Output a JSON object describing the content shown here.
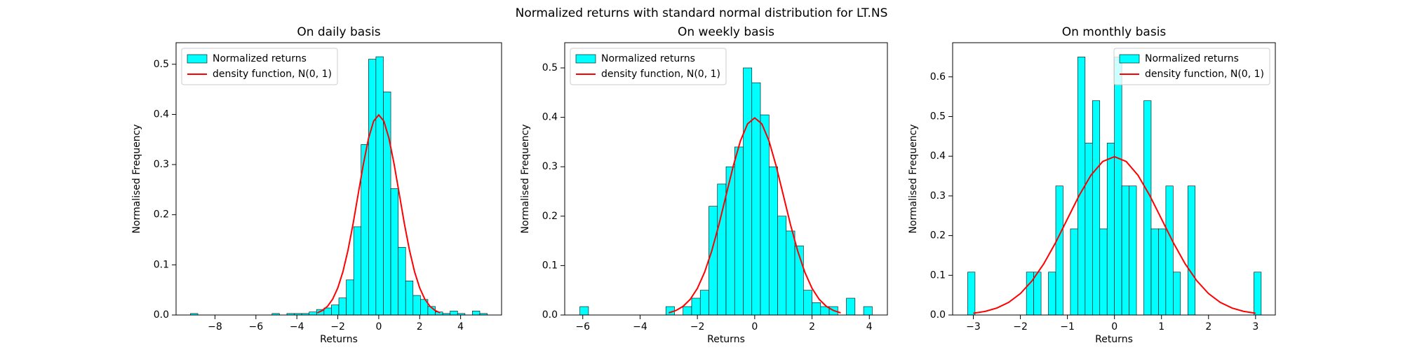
{
  "title": "Normalized returns with standard normal distribution for LT.NS",
  "chart_data": [
    {
      "type": "histogram",
      "title": "On daily basis",
      "x_label": "Returns",
      "y_label": "Normalised Frequency",
      "legend": "upper left",
      "xlim": [
        -9.9,
        6.0
      ],
      "ylim": [
        0,
        0.543
      ],
      "xticks": [
        {
          "value": -8,
          "label": "−8"
        },
        {
          "value": -6,
          "label": "−6"
        },
        {
          "value": -4,
          "label": "−4"
        },
        {
          "value": -2,
          "label": "−2"
        },
        0,
        2,
        4
      ],
      "yticks": [
        {
          "value": 0,
          "label": "0.0"
        },
        0.1,
        0.2,
        0.3,
        0.4,
        0.5
      ],
      "series": [
        {
          "name": "Normalized returns",
          "color": "#00ffff",
          "bins": [
            -9.2,
            -8.8375,
            -8.475,
            -8.1125,
            -7.75,
            -7.3875,
            -7.025,
            -6.6625,
            -6.3,
            -5.9375,
            -5.575,
            -5.2125,
            -4.85,
            -4.4875,
            -4.125,
            -3.7625,
            -3.4,
            -3.0375,
            -2.675,
            -2.3125,
            -1.95,
            -1.5875,
            -1.225,
            -0.8625,
            -0.5,
            -0.1375,
            0.225,
            0.5875,
            0.95,
            1.3125,
            1.675,
            2.0375,
            2.4,
            2.7625,
            3.125,
            3.4875,
            3.85,
            4.2125,
            4.575,
            4.9375,
            5.3
          ],
          "values": [
            0.003,
            0,
            0,
            0,
            0,
            0,
            0,
            0,
            0,
            0,
            0,
            0.003,
            0,
            0.003,
            0.003,
            0.003,
            0.006,
            0.011,
            0.014,
            0.02,
            0.034,
            0.07,
            0.176,
            0.34,
            0.51,
            0.515,
            0.445,
            0.252,
            0.135,
            0.068,
            0.039,
            0.031,
            0.017,
            0.006,
            0.003,
            0.008,
            0.003,
            0,
            0.008,
            0.003
          ]
        },
        {
          "type": "line",
          "name": "density function, N(0, 1)",
          "color": "#ff0000",
          "x": [
            -3,
            -2.75,
            -2.5,
            -2.25,
            -2,
            -1.75,
            -1.5,
            -1.25,
            -1,
            -0.75,
            -0.5,
            -0.25,
            0,
            0.25,
            0.5,
            0.75,
            1,
            1.25,
            1.5,
            1.75,
            2,
            2.25,
            2.5,
            2.75,
            3
          ],
          "values": [
            0.0044,
            0.0091,
            0.0175,
            0.0317,
            0.054,
            0.0863,
            0.1295,
            0.1826,
            0.242,
            0.3011,
            0.3521,
            0.3867,
            0.3989,
            0.3867,
            0.3521,
            0.3011,
            0.242,
            0.1826,
            0.1295,
            0.0863,
            0.054,
            0.0317,
            0.0175,
            0.0091,
            0.0044
          ]
        }
      ]
    },
    {
      "type": "histogram",
      "title": "On weekly basis",
      "x_label": "Returns",
      "y_label": "Normalised Frequency",
      "legend": "upper left",
      "xlim": [
        -6.63,
        4.63
      ],
      "ylim": [
        0,
        0.551
      ],
      "xticks": [
        {
          "value": -6,
          "label": "−6"
        },
        {
          "value": -4,
          "label": "−4"
        },
        {
          "value": -2,
          "label": "−2"
        },
        0,
        2,
        4
      ],
      "yticks": [
        {
          "value": 0,
          "label": "0.0"
        },
        0.1,
        0.2,
        0.3,
        0.4,
        0.5
      ],
      "series": [
        {
          "name": "Normalized returns",
          "color": "#00ffff",
          "bins": [
            -6.1,
            -5.8,
            -5.5,
            -5.2,
            -4.9,
            -4.6,
            -4.3,
            -4.0,
            -3.7,
            -3.4,
            -3.1,
            -2.8,
            -2.5,
            -2.2,
            -1.9,
            -1.6,
            -1.3,
            -1.0,
            -0.7,
            -0.4,
            -0.1,
            0.2,
            0.5,
            0.8,
            1.1,
            1.4,
            1.7,
            2.0,
            2.3,
            2.6,
            2.9,
            3.2,
            3.5,
            3.8,
            4.1
          ],
          "values": [
            0.017,
            0,
            0,
            0,
            0,
            0,
            0,
            0,
            0,
            0,
            0.017,
            0,
            0.017,
            0.034,
            0.05,
            0.22,
            0.265,
            0.3,
            0.34,
            0.5,
            0.47,
            0.405,
            0.3,
            0.2,
            0.17,
            0.14,
            0.05,
            0.025,
            0.017,
            0.017,
            0,
            0.034,
            0,
            0.017
          ]
        },
        {
          "type": "line",
          "name": "density function, N(0, 1)",
          "color": "#ff0000",
          "x": [
            -3,
            -2.75,
            -2.5,
            -2.25,
            -2,
            -1.75,
            -1.5,
            -1.25,
            -1,
            -0.75,
            -0.5,
            -0.25,
            0,
            0.25,
            0.5,
            0.75,
            1,
            1.25,
            1.5,
            1.75,
            2,
            2.25,
            2.5,
            2.75,
            3
          ],
          "values": [
            0.0044,
            0.0091,
            0.0175,
            0.0317,
            0.054,
            0.0863,
            0.1295,
            0.1826,
            0.242,
            0.3011,
            0.3521,
            0.3867,
            0.3989,
            0.3867,
            0.3521,
            0.3011,
            0.242,
            0.1826,
            0.1295,
            0.0863,
            0.054,
            0.0317,
            0.0175,
            0.0091,
            0.0044
          ]
        }
      ]
    },
    {
      "type": "histogram",
      "title": "On monthly basis",
      "x_label": "Returns",
      "y_label": "Normalised Frequency",
      "legend": "upper right",
      "xlim": [
        -3.44,
        3.42
      ],
      "ylim": [
        0,
        0.686
      ],
      "xticks": [
        {
          "value": -3,
          "label": "−3"
        },
        {
          "value": -2,
          "label": "−2"
        },
        {
          "value": -1,
          "label": "−1"
        },
        0,
        1,
        2,
        3
      ],
      "yticks": [
        {
          "value": 0,
          "label": "0.0"
        },
        0.1,
        0.2,
        0.3,
        0.4,
        0.5,
        0.6
      ],
      "series": [
        {
          "name": "Normalized returns",
          "color": "#00ffff",
          "bins": [
            -3.12,
            -2.964,
            -2.808,
            -2.652,
            -2.496,
            -2.34,
            -2.184,
            -2.028,
            -1.872,
            -1.716,
            -1.56,
            -1.404,
            -1.248,
            -1.092,
            -0.936,
            -0.78,
            -0.624,
            -0.468,
            -0.312,
            -0.156,
            0,
            0.156,
            0.312,
            0.468,
            0.624,
            0.78,
            0.936,
            1.092,
            1.248,
            1.404,
            1.56,
            1.716,
            1.872,
            2.028,
            2.184,
            2.34,
            2.496,
            2.652,
            2.808,
            2.964,
            3.12
          ],
          "values": [
            0.108,
            0,
            0,
            0,
            0,
            0,
            0,
            0,
            0.108,
            0.108,
            0,
            0.108,
            0.325,
            0,
            0.217,
            0.65,
            0.433,
            0.54,
            0.217,
            0.433,
            0.65,
            0.325,
            0.325,
            0,
            0.54,
            0.217,
            0.217,
            0.325,
            0.108,
            0,
            0.325,
            0,
            0,
            0,
            0,
            0,
            0,
            0,
            0,
            0.108
          ]
        },
        {
          "type": "line",
          "name": "density function, N(0, 1)",
          "color": "#ff0000",
          "x": [
            -3,
            -2.75,
            -2.5,
            -2.25,
            -2,
            -1.75,
            -1.5,
            -1.25,
            -1,
            -0.75,
            -0.5,
            -0.25,
            0,
            0.25,
            0.5,
            0.75,
            1,
            1.25,
            1.5,
            1.75,
            2,
            2.25,
            2.5,
            2.75,
            3
          ],
          "values": [
            0.0044,
            0.0091,
            0.0175,
            0.0317,
            0.054,
            0.0863,
            0.1295,
            0.1826,
            0.242,
            0.3011,
            0.3521,
            0.3867,
            0.3989,
            0.3867,
            0.3521,
            0.3011,
            0.242,
            0.1826,
            0.1295,
            0.0863,
            0.054,
            0.0317,
            0.0175,
            0.0091,
            0.0044
          ]
        }
      ]
    }
  ]
}
